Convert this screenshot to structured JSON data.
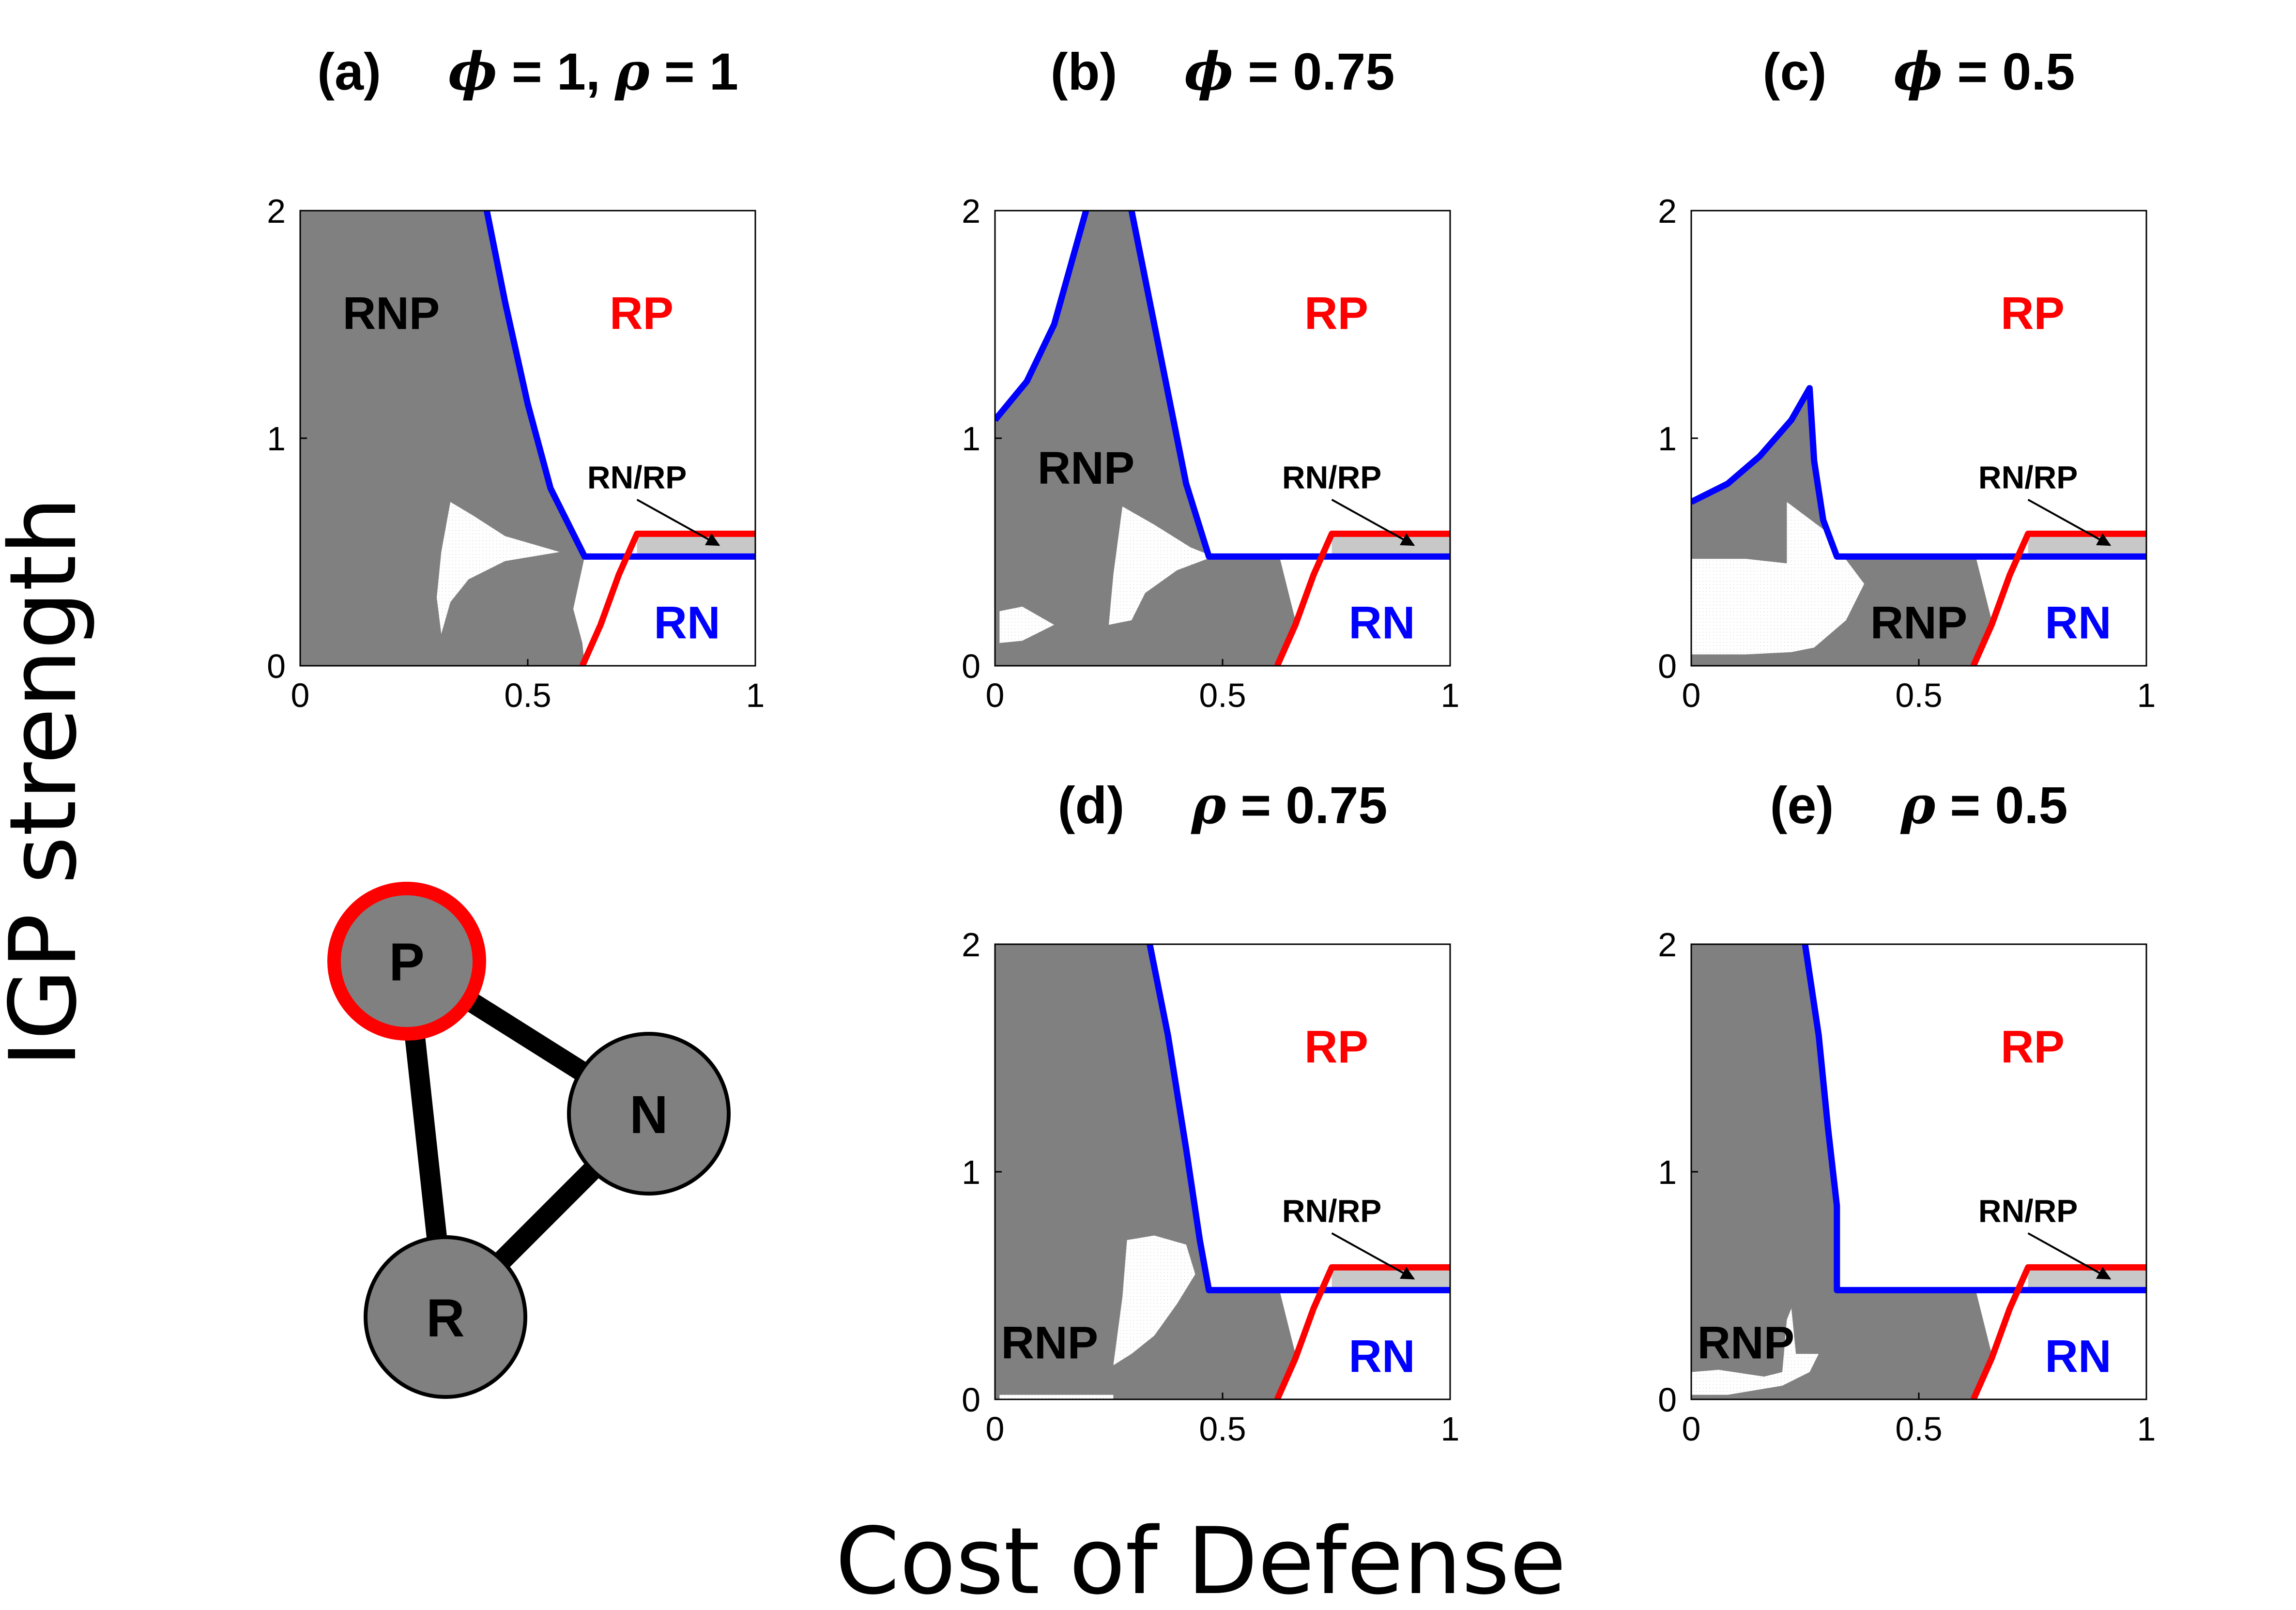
{
  "figure": {
    "ylabel": "IGP strength",
    "xlabel": "Cost of Defense"
  },
  "colors": {
    "rnp_fill": "#808080",
    "rnrp_fill": "#c8c8c8",
    "rn_boundary": "#0000ff",
    "rp_boundary": "#ff0000",
    "rn_label": "#0000ff",
    "rp_label": "#ff0000",
    "rnp_label": "#000000",
    "node_fill": "#808080",
    "predator_ring": "#ff0000",
    "edge": "#000000"
  },
  "food_web": {
    "nodes": [
      "P",
      "N",
      "R"
    ],
    "edges": [
      [
        "P",
        "N"
      ],
      [
        "P",
        "R"
      ],
      [
        "N",
        "R"
      ]
    ],
    "highlighted": "P"
  },
  "chart_data": [
    {
      "id": "a",
      "type": "area",
      "title": {
        "tag": "(a)",
        "params": [
          {
            "symbol": "ϕ",
            "value": "1"
          },
          {
            "symbol": "ρ",
            "value": "1"
          }
        ]
      },
      "xlim": [
        0,
        1
      ],
      "ylim": [
        0,
        2
      ],
      "xticks": [
        0,
        0.5,
        1
      ],
      "xticklabels": [
        "0",
        "0.5",
        "1"
      ],
      "yticks": [
        0,
        1,
        2
      ],
      "yticklabels": [
        "0",
        "1",
        "2"
      ],
      "rnp_region": [
        [
          0,
          0
        ],
        [
          0,
          2
        ],
        [
          0.41,
          2
        ],
        [
          0.45,
          1.6
        ],
        [
          0.5,
          1.15
        ],
        [
          0.55,
          0.78
        ],
        [
          0.625,
          0.48
        ],
        [
          0.625,
          0.48
        ],
        [
          0.6,
          0.25
        ],
        [
          0.62,
          0.1
        ],
        [
          0.625,
          0
        ]
      ],
      "rn_boundary": [
        [
          0.41,
          2
        ],
        [
          0.45,
          1.6
        ],
        [
          0.5,
          1.15
        ],
        [
          0.55,
          0.78
        ],
        [
          0.625,
          0.48
        ],
        [
          1,
          0.48
        ]
      ],
      "rp_boundary": [
        [
          0.62,
          0
        ],
        [
          0.66,
          0.18
        ],
        [
          0.7,
          0.4
        ],
        [
          0.74,
          0.58
        ],
        [
          1,
          0.58
        ]
      ],
      "rnrp_band": {
        "x": [
          0.74,
          1
        ],
        "y": [
          0.48,
          0.58
        ]
      },
      "holes": [
        [
          [
            0.31,
            0.14
          ],
          [
            0.3,
            0.3
          ],
          [
            0.31,
            0.5
          ],
          [
            0.33,
            0.72
          ],
          [
            0.38,
            0.66
          ],
          [
            0.45,
            0.57
          ],
          [
            0.57,
            0.5
          ],
          [
            0.45,
            0.46
          ],
          [
            0.37,
            0.38
          ],
          [
            0.33,
            0.28
          ]
        ]
      ],
      "labels": {
        "rnp": "RNP",
        "rp": "RP",
        "rn": "RN",
        "callout": "RN/RP"
      },
      "label_positions": {
        "rnp": [
          0.2,
          1.55
        ],
        "rp": [
          0.75,
          1.55
        ],
        "rn": [
          0.85,
          0.19
        ],
        "callout": [
          0.74,
          0.78
        ]
      }
    },
    {
      "id": "b",
      "type": "area",
      "title": {
        "tag": "(b)",
        "params": [
          {
            "symbol": "ϕ",
            "value": "0.75"
          }
        ]
      },
      "xlim": [
        0,
        1
      ],
      "ylim": [
        0,
        2
      ],
      "xticks": [
        0,
        0.5,
        1
      ],
      "xticklabels": [
        "0",
        "0.5",
        "1"
      ],
      "yticks": [
        0,
        1,
        2
      ],
      "yticklabels": [
        "0",
        "1",
        "2"
      ],
      "rnp_region": [
        [
          0,
          0
        ],
        [
          0,
          1.08
        ],
        [
          0.07,
          1.25
        ],
        [
          0.13,
          1.5
        ],
        [
          0.2,
          2
        ],
        [
          0.3,
          2
        ],
        [
          0.33,
          1.7
        ],
        [
          0.38,
          1.2
        ],
        [
          0.42,
          0.8
        ],
        [
          0.47,
          0.48
        ],
        [
          0.625,
          0.48
        ],
        [
          0.66,
          0.2
        ],
        [
          0.625,
          0
        ]
      ],
      "rn_boundary_1": [
        [
          0,
          1.08
        ],
        [
          0.07,
          1.25
        ],
        [
          0.13,
          1.5
        ],
        [
          0.2,
          2
        ]
      ],
      "rn_boundary_2": [
        [
          0.3,
          2
        ],
        [
          0.33,
          1.7
        ],
        [
          0.38,
          1.2
        ],
        [
          0.42,
          0.8
        ],
        [
          0.47,
          0.48
        ],
        [
          1,
          0.48
        ]
      ],
      "rp_boundary": [
        [
          0.62,
          0
        ],
        [
          0.66,
          0.18
        ],
        [
          0.7,
          0.4
        ],
        [
          0.74,
          0.58
        ],
        [
          1,
          0.58
        ]
      ],
      "rnrp_band": {
        "x": [
          0.74,
          1
        ],
        "y": [
          0.48,
          0.58
        ]
      },
      "holes": [
        [
          [
            0.25,
            0.18
          ],
          [
            0.26,
            0.4
          ],
          [
            0.28,
            0.7
          ],
          [
            0.35,
            0.62
          ],
          [
            0.43,
            0.52
          ],
          [
            0.48,
            0.48
          ],
          [
            0.4,
            0.42
          ],
          [
            0.33,
            0.32
          ],
          [
            0.3,
            0.2
          ]
        ],
        [
          [
            0.01,
            0.1
          ],
          [
            0.01,
            0.24
          ],
          [
            0.06,
            0.26
          ],
          [
            0.13,
            0.18
          ],
          [
            0.06,
            0.11
          ]
        ]
      ],
      "labels": {
        "rnp": "RNP",
        "rp": "RP",
        "rn": "RN",
        "callout": "RN/RP"
      },
      "label_positions": {
        "rnp": [
          0.2,
          0.87
        ],
        "rp": [
          0.75,
          1.55
        ],
        "rn": [
          0.85,
          0.19
        ],
        "callout": [
          0.74,
          0.78
        ]
      }
    },
    {
      "id": "c",
      "type": "area",
      "title": {
        "tag": "(c)",
        "params": [
          {
            "symbol": "ϕ",
            "value": "0.5"
          }
        ]
      },
      "xlim": [
        0,
        1
      ],
      "ylim": [
        0,
        2
      ],
      "xticks": [
        0,
        0.5,
        1
      ],
      "xticklabels": [
        "0",
        "0.5",
        "1"
      ],
      "yticks": [
        0,
        1,
        2
      ],
      "yticklabels": [
        "0",
        "1",
        "2"
      ],
      "rnp_region": [
        [
          0,
          0
        ],
        [
          0,
          0.72
        ],
        [
          0.08,
          0.8
        ],
        [
          0.15,
          0.92
        ],
        [
          0.22,
          1.08
        ],
        [
          0.26,
          1.22
        ],
        [
          0.27,
          0.9
        ],
        [
          0.29,
          0.64
        ],
        [
          0.32,
          0.48
        ],
        [
          0.625,
          0.48
        ],
        [
          0.66,
          0.2
        ],
        [
          0.625,
          0
        ]
      ],
      "rn_boundary": [
        [
          0,
          0.72
        ],
        [
          0.08,
          0.8
        ],
        [
          0.15,
          0.92
        ],
        [
          0.22,
          1.08
        ],
        [
          0.26,
          1.22
        ],
        [
          0.27,
          0.9
        ],
        [
          0.29,
          0.64
        ],
        [
          0.32,
          0.48
        ],
        [
          1,
          0.48
        ]
      ],
      "rp_boundary": [
        [
          0.62,
          0
        ],
        [
          0.66,
          0.18
        ],
        [
          0.7,
          0.4
        ],
        [
          0.74,
          0.58
        ],
        [
          1,
          0.58
        ]
      ],
      "rnrp_band": {
        "x": [
          0.74,
          1
        ],
        "y": [
          0.48,
          0.58
        ]
      },
      "holes": [
        [
          [
            0,
            0.05
          ],
          [
            0,
            0.47
          ],
          [
            0.12,
            0.47
          ],
          [
            0.21,
            0.45
          ],
          [
            0.21,
            0.72
          ],
          [
            0.29,
            0.6
          ],
          [
            0.38,
            0.36
          ],
          [
            0.34,
            0.2
          ],
          [
            0.27,
            0.08
          ],
          [
            0.22,
            0.06
          ],
          [
            0.12,
            0.05
          ]
        ]
      ],
      "labels": {
        "rnp": "RNP",
        "rp": "RP",
        "rn": "RN",
        "callout": "RN/RP"
      },
      "label_positions": {
        "rnp": [
          0.5,
          0.19
        ],
        "rp": [
          0.75,
          1.55
        ],
        "rn": [
          0.85,
          0.19
        ],
        "callout": [
          0.74,
          0.78
        ]
      }
    },
    {
      "id": "d",
      "type": "area",
      "title": {
        "tag": "(d)",
        "params": [
          {
            "symbol": "ρ",
            "value": "0.75"
          }
        ]
      },
      "xlim": [
        0,
        1
      ],
      "ylim": [
        0,
        2
      ],
      "xticks": [
        0,
        0.5,
        1
      ],
      "xticklabels": [
        "0",
        "0.5",
        "1"
      ],
      "yticks": [
        0,
        1,
        2
      ],
      "yticklabels": [
        "0",
        "1",
        "2"
      ],
      "rnp_region": [
        [
          0,
          0
        ],
        [
          0,
          2
        ],
        [
          0.34,
          2
        ],
        [
          0.38,
          1.6
        ],
        [
          0.42,
          1.1
        ],
        [
          0.45,
          0.7
        ],
        [
          0.47,
          0.48
        ],
        [
          0.625,
          0.48
        ],
        [
          0.66,
          0.2
        ],
        [
          0.625,
          0
        ]
      ],
      "rn_boundary": [
        [
          0.34,
          2
        ],
        [
          0.38,
          1.6
        ],
        [
          0.42,
          1.1
        ],
        [
          0.45,
          0.7
        ],
        [
          0.47,
          0.48
        ],
        [
          1,
          0.48
        ]
      ],
      "rp_boundary": [
        [
          0.62,
          0
        ],
        [
          0.66,
          0.18
        ],
        [
          0.7,
          0.4
        ],
        [
          0.74,
          0.58
        ],
        [
          1,
          0.58
        ]
      ],
      "rnrp_band": {
        "x": [
          0.74,
          1
        ],
        "y": [
          0.48,
          0.58
        ]
      },
      "holes": [
        [
          [
            0.26,
            0.15
          ],
          [
            0.28,
            0.45
          ],
          [
            0.29,
            0.7
          ],
          [
            0.35,
            0.72
          ],
          [
            0.42,
            0.68
          ],
          [
            0.44,
            0.55
          ],
          [
            0.4,
            0.42
          ],
          [
            0.35,
            0.28
          ],
          [
            0.3,
            0.2
          ]
        ],
        [
          [
            0.01,
            0
          ],
          [
            0.01,
            0.02
          ],
          [
            0.26,
            0.02
          ],
          [
            0.26,
            0
          ]
        ]
      ],
      "labels": {
        "rnp": "RNP",
        "rp": "RP",
        "rn": "RN",
        "callout": "RN/RP"
      },
      "label_positions": {
        "rnp": [
          0.12,
          0.25
        ],
        "rp": [
          0.75,
          1.55
        ],
        "rn": [
          0.85,
          0.19
        ],
        "callout": [
          0.74,
          0.78
        ]
      }
    },
    {
      "id": "e",
      "type": "area",
      "title": {
        "tag": "(e)",
        "params": [
          {
            "symbol": "ρ",
            "value": "0.5"
          }
        ]
      },
      "xlim": [
        0,
        1
      ],
      "ylim": [
        0,
        2
      ],
      "xticks": [
        0,
        0.5,
        1
      ],
      "xticklabels": [
        "0",
        "0.5",
        "1"
      ],
      "yticks": [
        0,
        1,
        2
      ],
      "yticklabels": [
        "0",
        "1",
        "2"
      ],
      "rnp_region": [
        [
          0,
          0
        ],
        [
          0,
          2
        ],
        [
          0.25,
          2
        ],
        [
          0.28,
          1.6
        ],
        [
          0.3,
          1.2
        ],
        [
          0.32,
          0.85
        ],
        [
          0.32,
          0.48
        ],
        [
          0.625,
          0.48
        ],
        [
          0.66,
          0.2
        ],
        [
          0.625,
          0
        ]
      ],
      "rn_boundary": [
        [
          0.25,
          2
        ],
        [
          0.28,
          1.6
        ],
        [
          0.3,
          1.2
        ],
        [
          0.32,
          0.85
        ],
        [
          0.32,
          0.48
        ],
        [
          1,
          0.48
        ]
      ],
      "rp_boundary": [
        [
          0.62,
          0
        ],
        [
          0.66,
          0.18
        ],
        [
          0.7,
          0.4
        ],
        [
          0.74,
          0.58
        ],
        [
          1,
          0.58
        ]
      ],
      "rnrp_band": {
        "x": [
          0.74,
          1
        ],
        "y": [
          0.48,
          0.58
        ]
      },
      "holes": [
        [
          [
            0,
            0.02
          ],
          [
            0,
            0.12
          ],
          [
            0.06,
            0.13
          ],
          [
            0.16,
            0.1
          ],
          [
            0.2,
            0.12
          ],
          [
            0.21,
            0.35
          ],
          [
            0.22,
            0.4
          ],
          [
            0.23,
            0.2
          ],
          [
            0.28,
            0.2
          ],
          [
            0.26,
            0.12
          ],
          [
            0.2,
            0.06
          ],
          [
            0.08,
            0.02
          ]
        ]
      ],
      "labels": {
        "rnp": "RNP",
        "rp": "RP",
        "rn": "RN",
        "callout": "RN/RP"
      },
      "label_positions": {
        "rnp": [
          0.12,
          0.25
        ],
        "rp": [
          0.75,
          1.55
        ],
        "rn": [
          0.85,
          0.19
        ],
        "callout": [
          0.74,
          0.78
        ]
      }
    }
  ]
}
